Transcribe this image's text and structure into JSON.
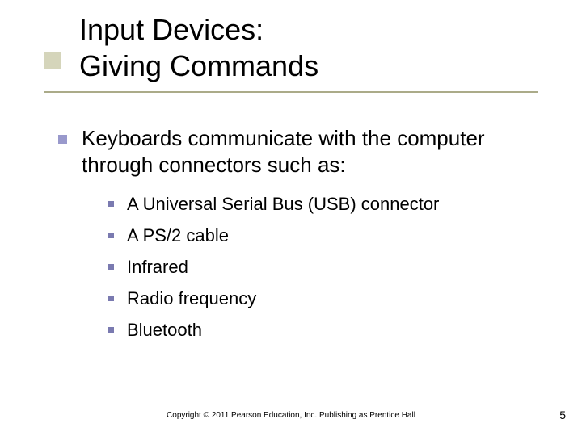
{
  "title": {
    "line1": "Input Devices:",
    "line2": "Giving Commands"
  },
  "level1": {
    "text": "Keyboards communicate with the computer through connectors such as:"
  },
  "level2": [
    {
      "text": "A Universal Serial Bus (USB) connector"
    },
    {
      "text": "A PS/2 cable"
    },
    {
      "text": "Infrared"
    },
    {
      "text": "Radio frequency"
    },
    {
      "text": "Bluetooth"
    }
  ],
  "footer": "Copyright © 2011 Pearson Education, Inc. Publishing as Prentice Hall",
  "page_number": "5",
  "colors": {
    "accent_square": "#b2b284",
    "underline": "#9c9c74",
    "l1_bullet": "#9999cc",
    "l2_bullet": "#7a7ab0",
    "text": "#000000",
    "background": "#ffffff"
  },
  "typography": {
    "title_fontsize": 36,
    "l1_fontsize": 26,
    "l2_fontsize": 22,
    "footer_fontsize": 10,
    "pagenum_fontsize": 14,
    "font_family": "Verdana"
  }
}
